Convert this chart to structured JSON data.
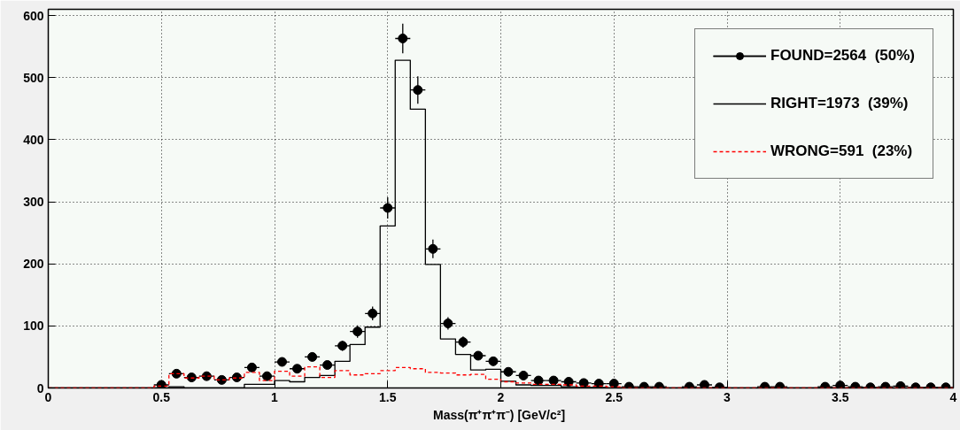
{
  "chart_data": {
    "type": "histogram",
    "xlabel": "Mass(π⁺π⁺π⁻)  [GeV/c²]",
    "bins": [
      0,
      0.0667,
      0.1333,
      0.2,
      0.2667,
      0.3333,
      0.4,
      0.4667,
      0.5333,
      0.6,
      0.6667,
      0.7333,
      0.8,
      0.8667,
      0.9333,
      1.0,
      1.0667,
      1.1333,
      1.2,
      1.2667,
      1.3333,
      1.4,
      1.4667,
      1.5333,
      1.6,
      1.6667,
      1.7333,
      1.8,
      1.8667,
      1.9333,
      2.0,
      2.0667,
      2.1333,
      2.2,
      2.2667,
      2.3333,
      2.4,
      2.4667,
      2.5333,
      2.6,
      2.6667,
      2.7333,
      2.8,
      2.8667,
      2.9333,
      3.0,
      3.0667,
      3.1333,
      3.2,
      3.2667,
      3.3333,
      3.4,
      3.4667,
      3.5333,
      3.6,
      3.6667,
      3.7333,
      3.8,
      3.8667,
      3.9333,
      4.0
    ],
    "xlim": [
      0,
      4
    ],
    "ylim": [
      0,
      610
    ],
    "xticks": [
      0,
      0.5,
      1,
      1.5,
      2,
      2.5,
      3,
      3.5,
      4
    ],
    "yticks": [
      0,
      100,
      200,
      300,
      400,
      500,
      600
    ],
    "grid": true,
    "legend": "top right",
    "series": [
      {
        "name": "FOUND=2564  (50%)",
        "type": "scatter",
        "marker": "circle",
        "color": "#000000",
        "x": [
          0.5,
          0.5667,
          0.6333,
          0.7,
          0.7667,
          0.8333,
          0.9,
          0.9667,
          1.0333,
          1.1,
          1.1667,
          1.2333,
          1.3,
          1.3667,
          1.4333,
          1.5,
          1.5667,
          1.6333,
          1.7,
          1.7667,
          1.8333,
          1.9,
          1.9667,
          2.0333,
          2.1,
          2.1667,
          2.2333,
          2.3,
          2.3667,
          2.4333,
          2.5,
          2.5667,
          2.6333,
          2.7,
          2.8333,
          2.9,
          2.9667,
          3.1667,
          3.2333,
          3.4333,
          3.5,
          3.5667,
          3.6333,
          3.7,
          3.7667,
          3.8333,
          3.9,
          3.9667
        ],
        "values": [
          5,
          23,
          17,
          19,
          13,
          17,
          33,
          19,
          42,
          31,
          50,
          37,
          68,
          91,
          120,
          290,
          563,
          480,
          224,
          104,
          74,
          52,
          43,
          26,
          20,
          12,
          12,
          10,
          8,
          7,
          7,
          2,
          2,
          2,
          2,
          5,
          1,
          2,
          2,
          2,
          4,
          2,
          1,
          2,
          3,
          1,
          1,
          1
        ],
        "errors": [
          2,
          5,
          4,
          4,
          4,
          4,
          6,
          4,
          6,
          6,
          7,
          6,
          8,
          10,
          11,
          17,
          24,
          22,
          15,
          10,
          9,
          7,
          7,
          5,
          4,
          3,
          3,
          3,
          3,
          3,
          3,
          1,
          1,
          1,
          1,
          2,
          1,
          1,
          1,
          1,
          2,
          1,
          1,
          1,
          2,
          1,
          1,
          1
        ],
        "xerrors": [
          0.0333,
          0.0333,
          0.0333,
          0.0333,
          0.0333,
          0.0333,
          0.0333,
          0.0333,
          0.0333,
          0.0333,
          0.0333,
          0.0333,
          0.0333,
          0.0333,
          0.0333,
          0.0333,
          0.0333,
          0.0333,
          0.0333,
          0.0333,
          0.0333,
          0.0333,
          0.0333,
          0.0333,
          0.0333,
          0.0333,
          0.0333,
          0.0333,
          0.0333,
          0.0333,
          0.0333,
          0.0333,
          0.0333,
          0.0333,
          0.0333,
          0.0333,
          0.0333,
          0.0333,
          0.0333,
          0.0333,
          0.0333,
          0.0333,
          0.0333,
          0.0333,
          0.0333,
          0.0333,
          0.0333,
          0.0333
        ]
      },
      {
        "name": "RIGHT=1973  (39%)",
        "color": "#000000",
        "line_style": "solid",
        "values": [
          0,
          0,
          0,
          0,
          0,
          0,
          0,
          0,
          2,
          0,
          0,
          0,
          0,
          6,
          6,
          12,
          10,
          17,
          20,
          43,
          70,
          98,
          261,
          528,
          449,
          199,
          79,
          54,
          29,
          30,
          11,
          5,
          4,
          4,
          2,
          1,
          1,
          0,
          0,
          0,
          0,
          0,
          0,
          0,
          0,
          0,
          0,
          0,
          0,
          0,
          0,
          0,
          0,
          0,
          0,
          0,
          0,
          0,
          0,
          0
        ]
      },
      {
        "name": "WRONG=591  (23%)",
        "color": "#ff0000",
        "line_style": "dashed",
        "values": [
          0,
          0,
          0,
          0,
          0,
          0,
          0,
          3,
          23,
          16,
          19,
          13,
          16,
          25,
          12,
          27,
          19,
          34,
          17,
          28,
          21,
          23,
          28,
          33,
          31,
          25,
          24,
          21,
          22,
          14,
          10,
          8,
          6,
          6,
          5,
          3,
          3,
          2,
          0,
          0,
          0,
          0,
          0,
          0,
          0,
          0,
          0,
          0,
          0,
          0,
          0,
          0,
          0,
          0,
          0,
          0,
          0,
          0,
          0,
          0
        ]
      }
    ]
  }
}
